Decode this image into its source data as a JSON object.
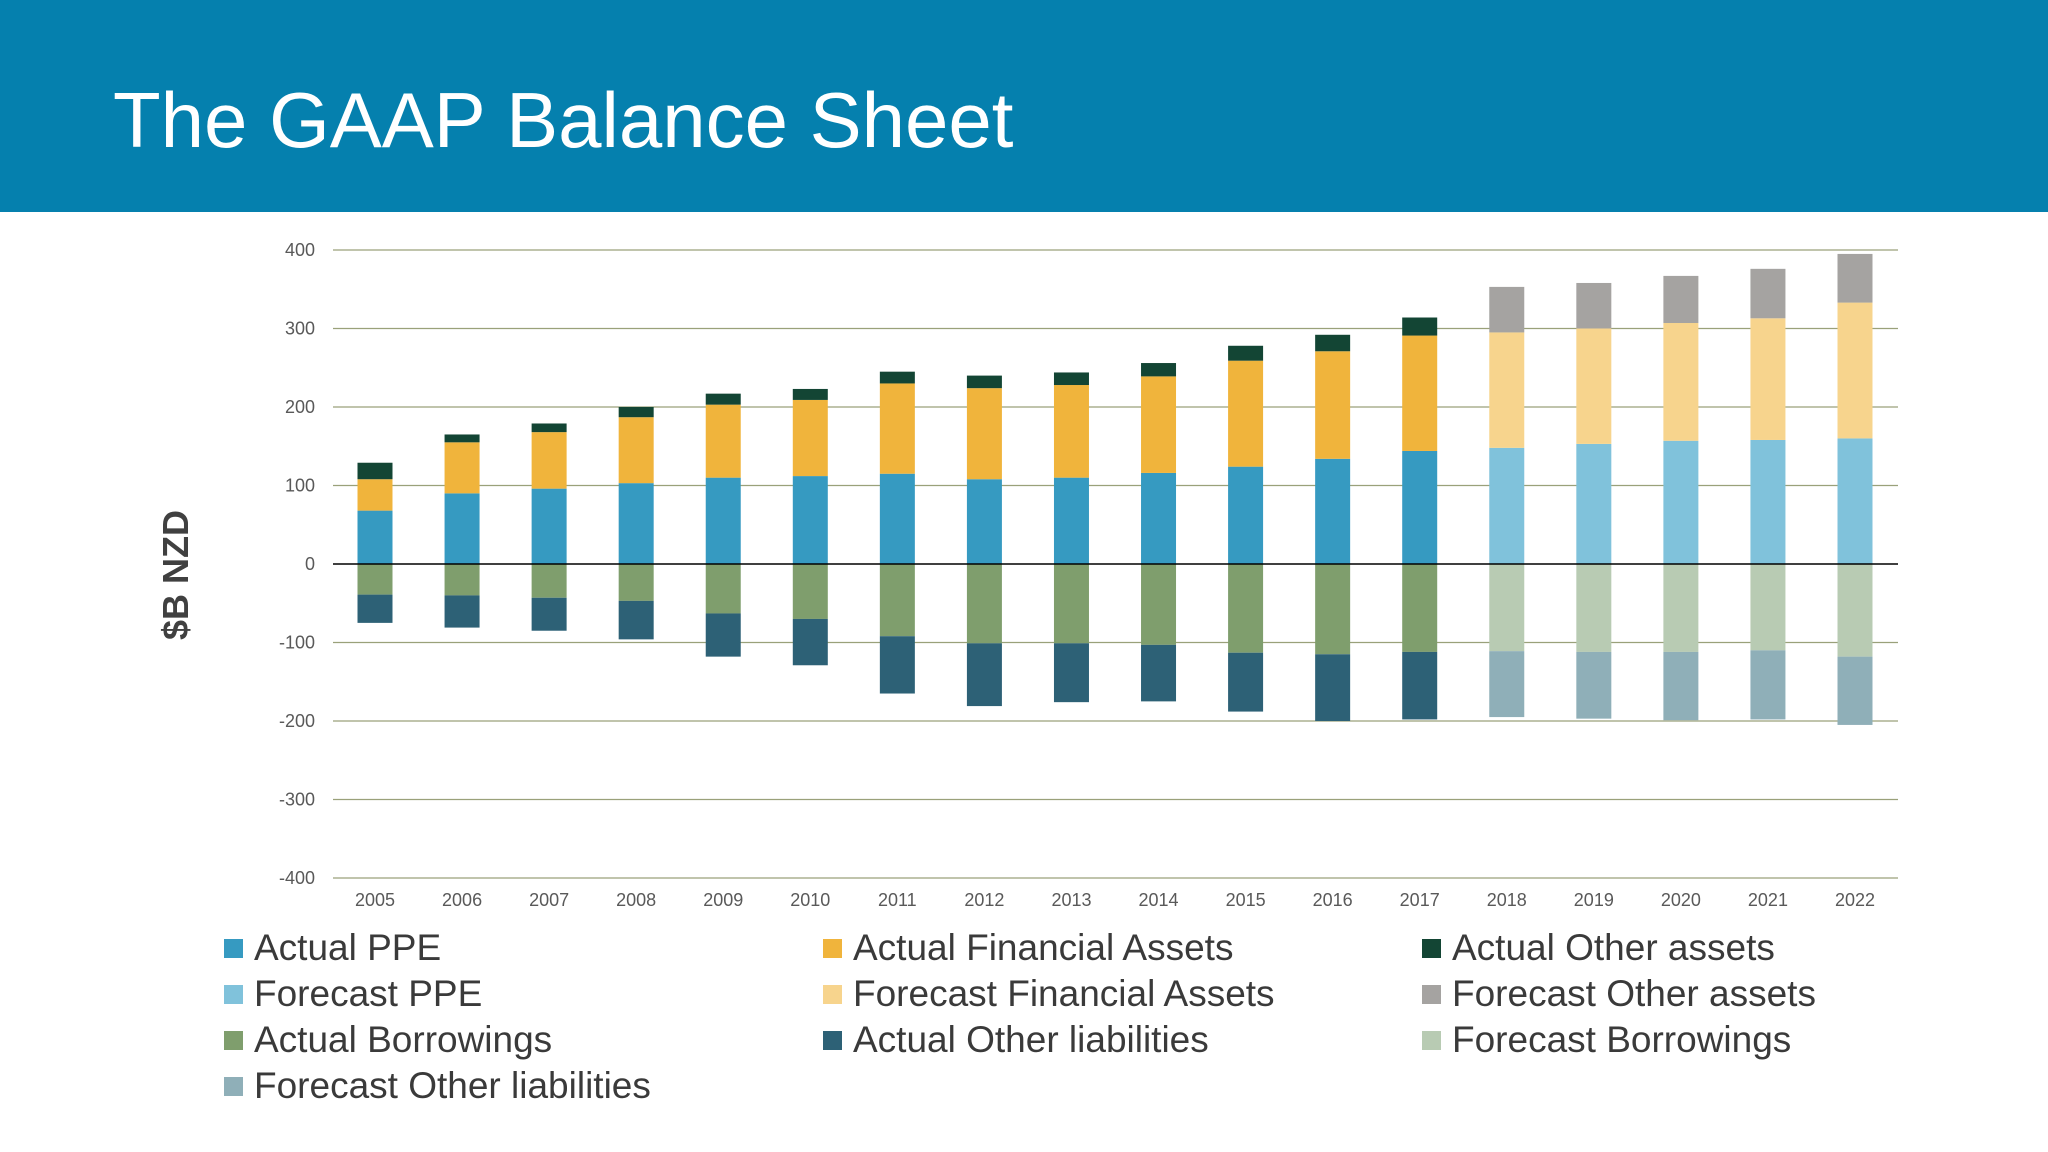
{
  "title": "The GAAP Balance Sheet",
  "chart_data": {
    "type": "bar",
    "stacked": true,
    "title": "The GAAP Balance Sheet",
    "xlabel": "",
    "ylabel": "$B NZD",
    "ylim": [
      -400,
      400
    ],
    "yticks": [
      400,
      300,
      200,
      100,
      0,
      -100,
      -200,
      -300,
      -400
    ],
    "grid": true,
    "legend_position": "bottom",
    "categories": [
      "2005",
      "2006",
      "2007",
      "2008",
      "2009",
      "2010",
      "2011",
      "2012",
      "2013",
      "2014",
      "2015",
      "2016",
      "2017",
      "2018",
      "2019",
      "2020",
      "2021",
      "2022"
    ],
    "series": [
      {
        "name": "Actual PPE",
        "color": "#369ac1",
        "values": [
          68,
          90,
          96,
          103,
          110,
          112,
          115,
          108,
          110,
          116,
          124,
          134,
          144,
          null,
          null,
          null,
          null,
          null
        ]
      },
      {
        "name": "Actual Financial Assets",
        "color": "#f0b43c",
        "values": [
          40,
          65,
          72,
          84,
          93,
          97,
          115,
          116,
          118,
          123,
          135,
          137,
          147,
          null,
          null,
          null,
          null,
          null
        ]
      },
      {
        "name": "Actual Other assets",
        "color": "#134534",
        "values": [
          21,
          10,
          11,
          13,
          14,
          14,
          15,
          16,
          16,
          17,
          19,
          21,
          23,
          null,
          null,
          null,
          null,
          null
        ]
      },
      {
        "name": "Forecast PPE",
        "color": "#80c2db",
        "values": [
          null,
          null,
          null,
          null,
          null,
          null,
          null,
          null,
          null,
          null,
          null,
          null,
          null,
          148,
          153,
          157,
          158,
          160
        ]
      },
      {
        "name": "Forecast Financial Assets",
        "color": "#f7d48d",
        "values": [
          null,
          null,
          null,
          null,
          null,
          null,
          null,
          null,
          null,
          null,
          null,
          null,
          null,
          147,
          147,
          150,
          155,
          173
        ]
      },
      {
        "name": "Forecast Other assets",
        "color": "#a5a3a1",
        "values": [
          null,
          null,
          null,
          null,
          null,
          null,
          null,
          null,
          null,
          null,
          null,
          null,
          null,
          58,
          58,
          60,
          63,
          62
        ]
      },
      {
        "name": "Actual Borrowings",
        "color": "#7f9e6d",
        "values": [
          -39,
          -40,
          -43,
          -47,
          -63,
          -70,
          -92,
          -101,
          -101,
          -103,
          -113,
          -115,
          -112,
          null,
          null,
          null,
          null,
          null
        ]
      },
      {
        "name": "Actual Other liabilities",
        "color": "#2d6176",
        "values": [
          -36,
          -41,
          -42,
          -49,
          -55,
          -59,
          -73,
          -80,
          -75,
          -72,
          -75,
          -85,
          -86,
          null,
          null,
          null,
          null,
          null
        ]
      },
      {
        "name": "Forecast Borrowings",
        "color": "#b8cbb3",
        "values": [
          null,
          null,
          null,
          null,
          null,
          null,
          null,
          null,
          null,
          null,
          null,
          null,
          null,
          -111,
          -112,
          -112,
          -110,
          -118
        ]
      },
      {
        "name": "Forecast Other liabilities",
        "color": "#8fafb8",
        "values": [
          null,
          null,
          null,
          null,
          null,
          null,
          null,
          null,
          null,
          null,
          null,
          null,
          null,
          -84,
          -85,
          -87,
          -88,
          -87
        ]
      }
    ],
    "colors": {
      "grid": "#9aa17a",
      "zero_line": "#000000",
      "tick_text": "#595959",
      "header_bg": "#0580ae"
    }
  },
  "legend": [
    {
      "label": "Actual PPE",
      "color": "#369ac1"
    },
    {
      "label": "Actual Financial Assets",
      "color": "#f0b43c"
    },
    {
      "label": "Actual Other assets",
      "color": "#134534"
    },
    {
      "label": "Forecast PPE",
      "color": "#80c2db"
    },
    {
      "label": "Forecast Financial Assets",
      "color": "#f7d48d"
    },
    {
      "label": "Forecast Other assets",
      "color": "#a5a3a1"
    },
    {
      "label": "Actual Borrowings",
      "color": "#7f9e6d"
    },
    {
      "label": "Actual Other liabilities",
      "color": "#2d6176"
    },
    {
      "label": "Forecast Borrowings",
      "color": "#b8cbb3"
    },
    {
      "label": "Forecast Other liabilities",
      "color": "#8fafb8"
    }
  ]
}
